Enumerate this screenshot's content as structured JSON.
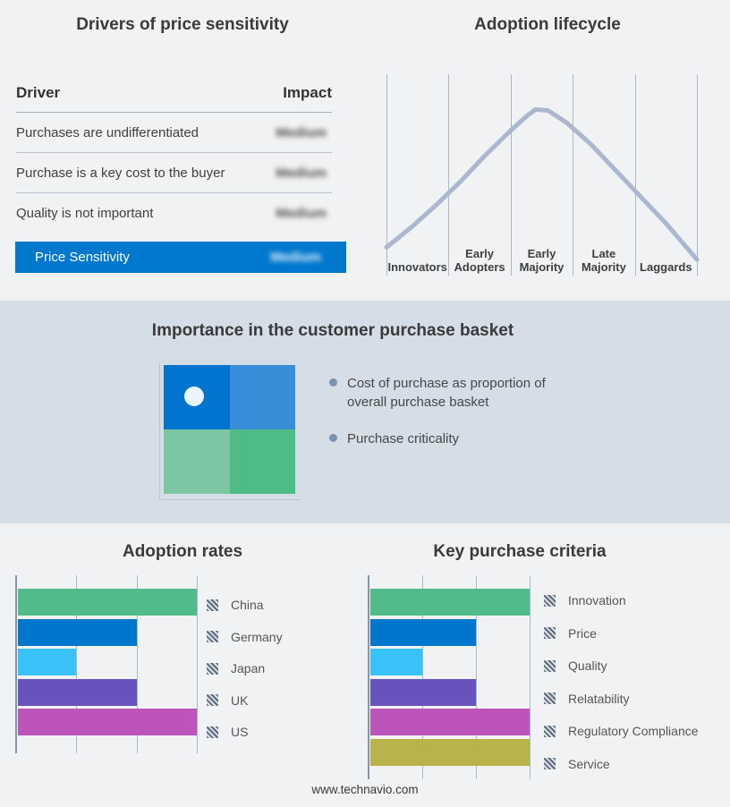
{
  "footer": {
    "text": "www.technavio.com"
  },
  "colors": {
    "page_bg": "#f1f2f4",
    "band_bg": "#d5dde6",
    "accent_blue": "#0078cd",
    "gridline": "#a9b9cc",
    "axis": "#8096ab",
    "bullet": "#7d92b0"
  },
  "drivers_table": {
    "title": "Drivers of price sensitivity",
    "columns": {
      "driver": "Driver",
      "impact": "Impact"
    },
    "rows": [
      {
        "driver": "Purchases are undifferentiated",
        "impact": "Medium"
      },
      {
        "driver": "Purchase is a key cost to the buyer",
        "impact": "Medium"
      },
      {
        "driver": "Quality is not important",
        "impact": "Medium"
      }
    ],
    "summary": {
      "label": "Price Sensitivity",
      "impact": "Medium",
      "bar_color": "#0078cd"
    },
    "impact_values_blurred": true
  },
  "basket": {
    "title": "Importance in the customer purchase basket",
    "bullets": [
      "Cost of purchase as proportion of overall purchase basket",
      "Purchase criticality"
    ],
    "quadrant_colors": {
      "top_left": "#0074cf",
      "top_right": "#3a8ed9",
      "bottom_left": "#7dc6a3",
      "bottom_right": "#4fbb86"
    },
    "marker": {
      "quadrant": "top_left",
      "color": "#e9f4fb"
    }
  },
  "chart_data": [
    {
      "id": "lifecycle",
      "type": "line",
      "title": "Adoption lifecycle",
      "categories": [
        "Innovators",
        "Early Adopters",
        "Early Majority",
        "Late Majority",
        "Laggards"
      ],
      "curve": "bell",
      "peak_category": "Early Majority",
      "line_color": "#aab7cd",
      "points_pct": [
        [
          0,
          14
        ],
        [
          8,
          24
        ],
        [
          16,
          35
        ],
        [
          24,
          47
        ],
        [
          32,
          60
        ],
        [
          40,
          72
        ],
        [
          45,
          79
        ],
        [
          48,
          82.5
        ],
        [
          52,
          82
        ],
        [
          58,
          76
        ],
        [
          66,
          65
        ],
        [
          74,
          52
        ],
        [
          82,
          39
        ],
        [
          90,
          26
        ],
        [
          100,
          8
        ]
      ],
      "grid": "vertical-stage-dividers",
      "legend_position": "none"
    },
    {
      "id": "adoption_rates",
      "type": "bar",
      "orientation": "horizontal",
      "title": "Adoption rates",
      "categories": [
        "China",
        "Germany",
        "Japan",
        "UK",
        "US"
      ],
      "values": [
        100,
        66.7,
        33.3,
        66.7,
        100
      ],
      "xlim": [
        0,
        100
      ],
      "ticks": [
        0,
        33.3,
        66.7,
        100
      ],
      "colors": [
        "#52bb8c",
        "#0077cd",
        "#38c2f7",
        "#6852bb",
        "#bc54ba"
      ],
      "legend_position": "right",
      "legend_swatch": "gray-hatched",
      "grid": "vertical"
    },
    {
      "id": "key_purchase_criteria",
      "type": "bar",
      "orientation": "horizontal",
      "title": "Key purchase criteria",
      "categories": [
        "Innovation",
        "Price",
        "Quality",
        "Relatability",
        "Regulatory Compliance",
        "Service"
      ],
      "values": [
        100,
        66.7,
        33.3,
        66.7,
        100,
        100
      ],
      "xlim": [
        0,
        100
      ],
      "ticks": [
        0,
        33.3,
        66.7,
        100
      ],
      "colors": [
        "#52bb8c",
        "#0077cd",
        "#38c2f7",
        "#6852bb",
        "#bc54ba",
        "#b9b44a"
      ],
      "legend_position": "right",
      "legend_swatch": "gray-hatched",
      "grid": "vertical"
    }
  ]
}
